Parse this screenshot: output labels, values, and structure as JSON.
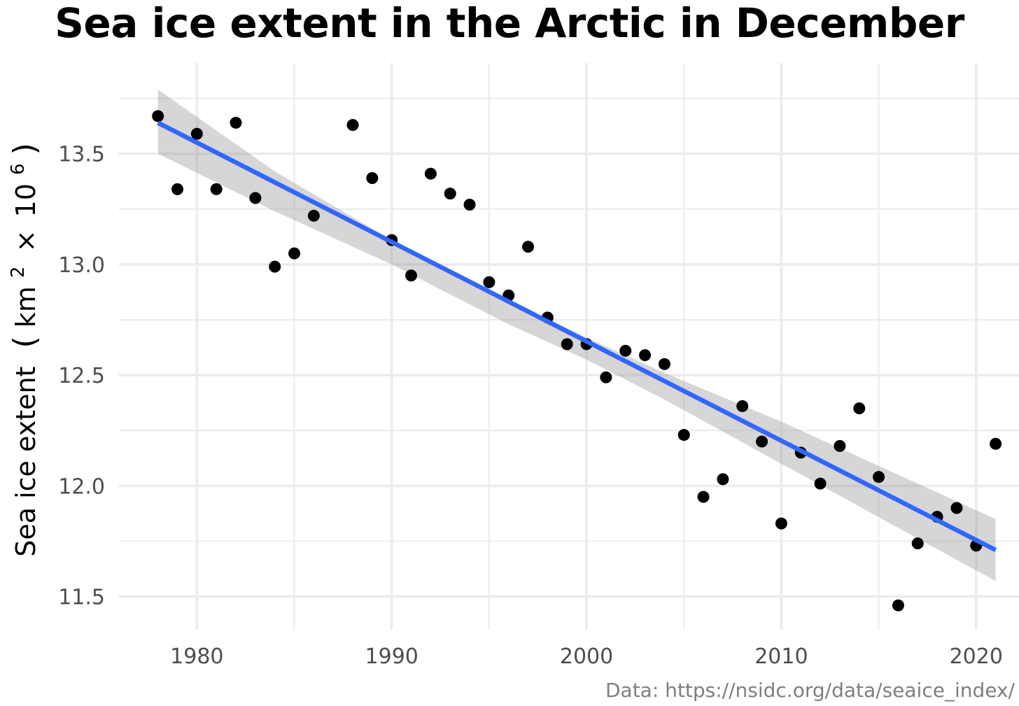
{
  "chart_data": {
    "type": "scatter",
    "title": "Sea ice extent in the Arctic in December",
    "ylabel_text": "Sea ice extent",
    "ylabel_unit_km": "km",
    "ylabel_unit_exp2": "2",
    "ylabel_unit_times": "×",
    "ylabel_unit_ten": "10",
    "ylabel_unit_exp6": "6",
    "xlabel": "",
    "caption": "Data: https://nsidc.org/data/seaice_index/",
    "xlim": [
      1976.0,
      2022.2
    ],
    "ylim": [
      11.35,
      13.91
    ],
    "x_ticks": [
      1980,
      1990,
      2000,
      2010,
      2020
    ],
    "x_tick_labels": [
      "1980",
      "1990",
      "2000",
      "2010",
      "2020"
    ],
    "y_ticks": [
      11.5,
      12.0,
      12.5,
      13.0,
      13.5
    ],
    "y_tick_labels": [
      "11.5",
      "12.0",
      "12.5",
      "13.0",
      "13.5"
    ],
    "grid": true,
    "colors": {
      "point": "#000000",
      "line": "#3366ff",
      "band": "#999999",
      "grid": "#ebebeb"
    },
    "trend": {
      "x": [
        1978,
        2021
      ],
      "y": [
        13.64,
        11.71
      ]
    },
    "confidence_band": {
      "x": [
        1978,
        1984,
        1990,
        1996,
        2000,
        2004,
        2010,
        2016,
        2021
      ],
      "upper": [
        13.79,
        13.42,
        13.11,
        12.84,
        12.67,
        12.51,
        12.29,
        12.05,
        11.85
      ],
      "lower": [
        13.5,
        13.24,
        13.0,
        12.73,
        12.57,
        12.39,
        12.1,
        11.81,
        11.57
      ]
    },
    "series": [
      {
        "x": [
          1978,
          1979,
          1980,
          1981,
          1982,
          1983,
          1984,
          1985,
          1986,
          1988,
          1989,
          1990,
          1991,
          1992,
          1993,
          1994,
          1995,
          1996,
          1997,
          1998,
          1999,
          2000,
          2001,
          2002,
          2003,
          2004,
          2005,
          2006,
          2007,
          2008,
          2009,
          2010,
          2011,
          2012,
          2013,
          2014,
          2015,
          2016,
          2017,
          2018,
          2019,
          2020,
          2021
        ],
        "y": [
          13.67,
          13.34,
          13.59,
          13.34,
          13.64,
          13.3,
          12.99,
          13.05,
          13.22,
          13.63,
          13.39,
          13.11,
          12.95,
          13.41,
          13.32,
          13.27,
          12.92,
          12.86,
          13.08,
          12.76,
          12.64,
          12.64,
          12.49,
          12.61,
          12.59,
          12.55,
          12.23,
          11.95,
          12.03,
          12.36,
          12.2,
          11.83,
          12.15,
          12.01,
          12.18,
          12.35,
          12.04,
          11.46,
          11.74,
          11.86,
          11.9,
          11.73,
          12.19
        ]
      }
    ]
  }
}
